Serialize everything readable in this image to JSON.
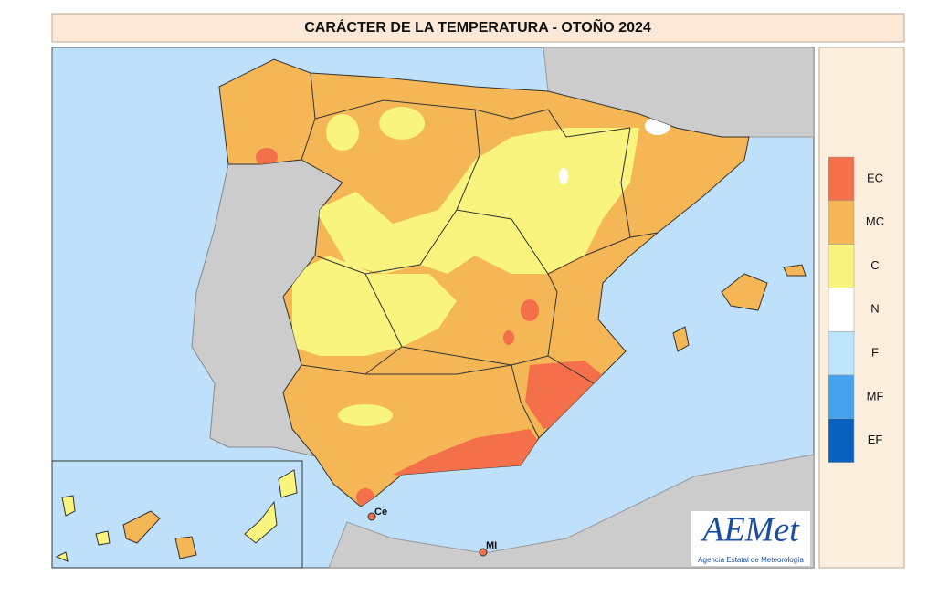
{
  "header": {
    "title": "CARÁCTER DE LA TEMPERATURA - OTOÑO 2024"
  },
  "legend": {
    "items": [
      {
        "label": "EC",
        "color": "#f4704a"
      },
      {
        "label": "MC",
        "color": "#f5b656"
      },
      {
        "label": "C",
        "color": "#f8f47e"
      },
      {
        "label": "N",
        "color": "#ffffff"
      },
      {
        "label": "F",
        "color": "#bde4fa"
      },
      {
        "label": "MF",
        "color": "#46a1ef"
      },
      {
        "label": "EF",
        "color": "#0a62c0"
      }
    ]
  },
  "map": {
    "labels": [
      "Ce",
      "MI"
    ]
  },
  "logo": {
    "name": "AEMet",
    "subtitle": "Agencia Estatal de Meteorología"
  }
}
